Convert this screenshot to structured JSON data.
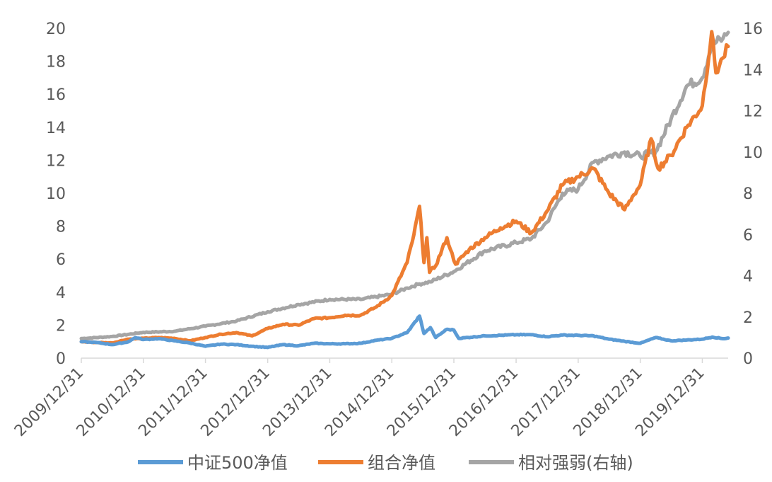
{
  "chart_data": {
    "type": "line",
    "title": "",
    "xlabel": "",
    "ylabel": "",
    "y2label": "",
    "ylim": [
      0,
      20
    ],
    "y2lim": [
      0,
      16
    ],
    "y_ticks": [
      "0",
      "2",
      "4",
      "6",
      "8",
      "10",
      "12",
      "14",
      "16",
      "18",
      "20"
    ],
    "y2_ticks": [
      "0",
      "2",
      "4",
      "6",
      "8",
      "10",
      "12",
      "14",
      "16"
    ],
    "x_ticks": [
      "2009/12/31",
      "2010/12/31",
      "2011/12/31",
      "2012/12/31",
      "2013/12/31",
      "2014/12/31",
      "2015/12/31",
      "2016/12/31",
      "2017/12/31",
      "2018/12/31",
      "2019/12/31"
    ],
    "grid": false,
    "legend_position": "bottom",
    "series": [
      {
        "name": "中证500净值",
        "axis": "left",
        "color": "#5B9BD5",
        "points": [
          [
            "2009-12-31",
            1.0
          ],
          [
            "2010-03-31",
            0.95
          ],
          [
            "2010-06-30",
            0.82
          ],
          [
            "2010-09-30",
            0.98
          ],
          [
            "2010-11-15",
            1.25
          ],
          [
            "2010-12-31",
            1.13
          ],
          [
            "2011-03-31",
            1.18
          ],
          [
            "2011-06-30",
            1.05
          ],
          [
            "2011-09-30",
            0.92
          ],
          [
            "2011-12-31",
            0.72
          ],
          [
            "2012-03-31",
            0.85
          ],
          [
            "2012-06-30",
            0.82
          ],
          [
            "2012-09-30",
            0.72
          ],
          [
            "2012-12-31",
            0.65
          ],
          [
            "2013-03-31",
            0.82
          ],
          [
            "2013-06-30",
            0.75
          ],
          [
            "2013-09-30",
            0.9
          ],
          [
            "2013-12-31",
            0.87
          ],
          [
            "2014-03-31",
            0.87
          ],
          [
            "2014-06-30",
            0.9
          ],
          [
            "2014-09-30",
            1.08
          ],
          [
            "2014-12-31",
            1.2
          ],
          [
            "2015-03-31",
            1.55
          ],
          [
            "2015-06-12",
            2.55
          ],
          [
            "2015-07-08",
            1.5
          ],
          [
            "2015-08-15",
            1.85
          ],
          [
            "2015-09-15",
            1.25
          ],
          [
            "2015-11-20",
            1.75
          ],
          [
            "2015-12-31",
            1.7
          ],
          [
            "2016-01-28",
            1.2
          ],
          [
            "2016-06-30",
            1.35
          ],
          [
            "2016-12-31",
            1.42
          ],
          [
            "2017-03-31",
            1.42
          ],
          [
            "2017-06-30",
            1.3
          ],
          [
            "2017-09-30",
            1.4
          ],
          [
            "2017-12-31",
            1.38
          ],
          [
            "2018-03-31",
            1.35
          ],
          [
            "2018-06-30",
            1.15
          ],
          [
            "2018-09-30",
            1.02
          ],
          [
            "2018-12-31",
            0.9
          ],
          [
            "2019-03-31",
            1.25
          ],
          [
            "2019-06-30",
            1.05
          ],
          [
            "2019-09-30",
            1.1
          ],
          [
            "2019-12-31",
            1.15
          ],
          [
            "2020-02-28",
            1.28
          ],
          [
            "2020-04-30",
            1.18
          ],
          [
            "2020-05-31",
            1.22
          ]
        ]
      },
      {
        "name": "组合净值",
        "axis": "left",
        "color": "#ED7D31",
        "points": [
          [
            "2009-12-31",
            1.0
          ],
          [
            "2010-03-31",
            0.95
          ],
          [
            "2010-06-30",
            0.92
          ],
          [
            "2010-09-30",
            1.15
          ],
          [
            "2010-12-31",
            1.2
          ],
          [
            "2011-03-31",
            1.25
          ],
          [
            "2011-06-30",
            1.2
          ],
          [
            "2011-09-30",
            1.05
          ],
          [
            "2011-12-31",
            1.25
          ],
          [
            "2012-03-31",
            1.45
          ],
          [
            "2012-06-30",
            1.55
          ],
          [
            "2012-09-30",
            1.35
          ],
          [
            "2012-12-31",
            1.8
          ],
          [
            "2013-03-31",
            2.05
          ],
          [
            "2013-06-30",
            2.0
          ],
          [
            "2013-09-30",
            2.4
          ],
          [
            "2013-12-31",
            2.45
          ],
          [
            "2014-03-31",
            2.6
          ],
          [
            "2014-06-30",
            2.6
          ],
          [
            "2014-09-30",
            3.1
          ],
          [
            "2014-12-31",
            3.8
          ],
          [
            "2015-03-31",
            5.8
          ],
          [
            "2015-05-10",
            7.5
          ],
          [
            "2015-06-12",
            9.2
          ],
          [
            "2015-07-08",
            5.8
          ],
          [
            "2015-07-25",
            7.3
          ],
          [
            "2015-08-10",
            5.2
          ],
          [
            "2015-09-15",
            5.6
          ],
          [
            "2015-11-20",
            7.3
          ],
          [
            "2015-12-10",
            6.6
          ],
          [
            "2016-01-10",
            5.7
          ],
          [
            "2016-03-31",
            6.6
          ],
          [
            "2016-06-30",
            7.3
          ],
          [
            "2016-09-30",
            7.9
          ],
          [
            "2016-12-31",
            8.3
          ],
          [
            "2017-03-31",
            7.6
          ],
          [
            "2017-06-30",
            8.9
          ],
          [
            "2017-09-30",
            10.5
          ],
          [
            "2017-12-31",
            11.0
          ],
          [
            "2018-03-31",
            11.5
          ],
          [
            "2018-06-30",
            10.0
          ],
          [
            "2018-09-30",
            9.0
          ],
          [
            "2018-11-15",
            9.8
          ],
          [
            "2018-12-31",
            10.5
          ],
          [
            "2019-03-05",
            13.3
          ],
          [
            "2019-04-15",
            11.5
          ],
          [
            "2019-06-30",
            12.3
          ],
          [
            "2019-09-30",
            14.0
          ],
          [
            "2019-12-31",
            15.3
          ],
          [
            "2020-02-24",
            19.8
          ],
          [
            "2020-03-20",
            17.3
          ],
          [
            "2020-04-30",
            18.2
          ],
          [
            "2020-05-31",
            18.9
          ]
        ]
      },
      {
        "name": "相对强弱(右轴)",
        "axis": "right",
        "color": "#A5A5A5",
        "points": [
          [
            "2009-12-31",
            0.95
          ],
          [
            "2010-06-30",
            1.05
          ],
          [
            "2010-12-31",
            1.25
          ],
          [
            "2011-06-30",
            1.3
          ],
          [
            "2011-12-31",
            1.55
          ],
          [
            "2012-06-30",
            1.8
          ],
          [
            "2012-12-31",
            2.25
          ],
          [
            "2013-06-30",
            2.6
          ],
          [
            "2013-12-31",
            2.85
          ],
          [
            "2014-06-30",
            2.85
          ],
          [
            "2014-12-31",
            3.1
          ],
          [
            "2015-03-31",
            3.4
          ],
          [
            "2015-06-12",
            3.6
          ],
          [
            "2015-08-15",
            3.7
          ],
          [
            "2015-12-31",
            4.2
          ],
          [
            "2016-06-30",
            5.2
          ],
          [
            "2016-12-31",
            5.6
          ],
          [
            "2017-03-31",
            5.8
          ],
          [
            "2017-06-30",
            6.6
          ],
          [
            "2017-09-30",
            8.0
          ],
          [
            "2017-12-31",
            8.2
          ],
          [
            "2018-03-31",
            9.5
          ],
          [
            "2018-06-30",
            9.8
          ],
          [
            "2018-09-30",
            10.0
          ],
          [
            "2018-12-31",
            9.8
          ],
          [
            "2019-03-31",
            10.0
          ],
          [
            "2019-06-30",
            11.6
          ],
          [
            "2019-09-30",
            13.2
          ],
          [
            "2019-12-31",
            13.6
          ],
          [
            "2020-02-24",
            15.2
          ],
          [
            "2020-04-30",
            15.5
          ],
          [
            "2020-05-31",
            15.8
          ]
        ]
      }
    ]
  }
}
